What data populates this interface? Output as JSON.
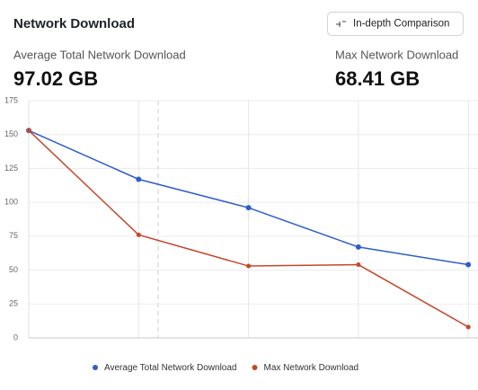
{
  "header": {
    "title": "Network Download",
    "button": "In-depth Comparison"
  },
  "stats": [
    {
      "label": "Average Total Network Download",
      "value": "97.02 GB"
    },
    {
      "label": "Max Network Download",
      "value": "68.41 GB"
    }
  ],
  "chart_data": {
    "type": "line",
    "categories": [
      null,
      null,
      null,
      null,
      null
    ],
    "series": [
      {
        "name": "Average Total Network Download",
        "color": "#2e5ec9",
        "values": [
          153,
          117,
          96,
          67,
          54
        ]
      },
      {
        "name": "Max Network Download",
        "color": "#c4472b",
        "values": [
          153,
          76,
          53,
          54,
          8
        ]
      }
    ],
    "ylim": [
      0,
      175
    ],
    "yticks": [
      0,
      25,
      50,
      75,
      100,
      125,
      150,
      175
    ],
    "grid": true,
    "legend": "bottom"
  }
}
